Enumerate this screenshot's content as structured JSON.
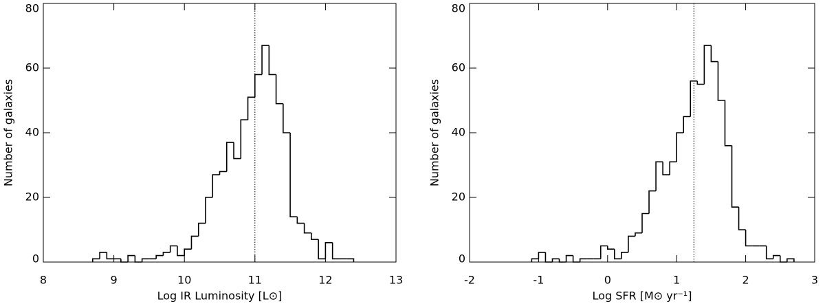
{
  "chart_data": [
    {
      "type": "histogram",
      "xlabel": "Log IR Luminosity [L⊙]",
      "ylabel": "Number of galaxies",
      "bins": [
        8.7,
        8.8,
        8.9,
        9.0,
        9.1,
        9.2,
        9.3,
        9.4,
        9.5,
        9.6,
        9.7,
        9.8,
        9.9,
        10.0,
        10.1,
        10.2,
        10.3,
        10.4,
        10.5,
        10.6,
        10.7,
        10.8,
        10.9,
        11.0,
        11.1,
        11.2,
        11.3,
        11.4,
        11.5,
        11.6,
        11.7,
        11.8,
        11.9,
        12.0,
        12.1,
        12.2,
        12.3,
        12.4
      ],
      "values": [
        1,
        3,
        1,
        1,
        0,
        2,
        0,
        1,
        1,
        2,
        3,
        5,
        2,
        4,
        8,
        12,
        20,
        27,
        28,
        37,
        32,
        44,
        51,
        58,
        67,
        58,
        49,
        40,
        14,
        12,
        9,
        7,
        1,
        6,
        1,
        1,
        1
      ],
      "color": "#000000",
      "vline": 11,
      "xlim": [
        8,
        13
      ],
      "xticks": [
        8,
        9,
        10,
        11,
        12,
        13
      ],
      "ylim": [
        0,
        80
      ],
      "yticks": [
        0,
        20,
        40,
        60,
        80
      ]
    },
    {
      "type": "histogram",
      "xlabel": "Log SFR [M⊙ yr⁻¹]",
      "ylabel": "Number of galaxies",
      "bins": [
        -1.1,
        -1.0,
        -0.9,
        -0.8,
        -0.7,
        -0.6,
        -0.5,
        -0.4,
        -0.3,
        -0.2,
        -0.1,
        0.0,
        0.1,
        0.2,
        0.3,
        0.4,
        0.5,
        0.6,
        0.7,
        0.8,
        0.9,
        1.0,
        1.1,
        1.2,
        1.3,
        1.4,
        1.5,
        1.6,
        1.7,
        1.8,
        1.9,
        2.0,
        2.1,
        2.2,
        2.3,
        2.4,
        2.5,
        2.6,
        2.7
      ],
      "values": [
        1,
        3,
        0,
        1,
        0,
        2,
        0,
        1,
        1,
        1,
        5,
        4,
        1,
        3,
        8,
        9,
        15,
        22,
        31,
        27,
        31,
        40,
        45,
        56,
        55,
        67,
        62,
        50,
        36,
        17,
        10,
        5,
        5,
        5,
        1,
        2,
        0,
        1
      ],
      "color": "#000000",
      "vline": 1.25,
      "xlim": [
        -2,
        3
      ],
      "xticks": [
        -2,
        -1,
        0,
        1,
        2,
        3
      ],
      "ylim": [
        0,
        80
      ],
      "yticks": [
        0,
        20,
        40,
        60,
        80
      ]
    }
  ]
}
